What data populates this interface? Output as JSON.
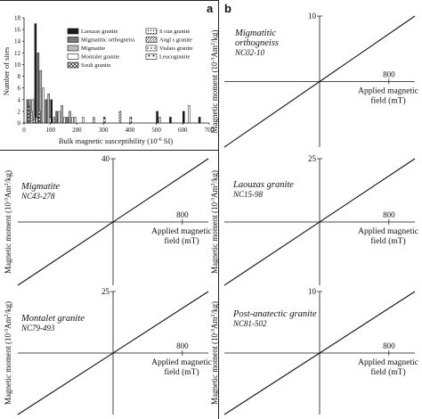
{
  "panel_labels": {
    "a": "a",
    "b": "b"
  },
  "histogram": {
    "type": "bar",
    "ylabel": "Number of sites",
    "xlabel": "Bulk magnetic susceptibility (10",
    "xlabel_exp": "-6",
    "xlabel_tail": " SI)",
    "xlim": [
      0,
      700
    ],
    "ylim": [
      0,
      18
    ],
    "xticks": [
      "0",
      "100",
      "200",
      "300",
      "400",
      "500",
      "600",
      "700"
    ],
    "yticks": [
      "0",
      "2",
      "4",
      "6",
      "8",
      "10",
      "12",
      "14",
      "16",
      "18"
    ],
    "bin_width": 10,
    "series": [
      {
        "name": "Laouzas granite",
        "color": "#1a1a1a",
        "pattern": "solid",
        "bins": [
          {
            "x": 40,
            "v": 17
          },
          {
            "x": 100,
            "v": 4
          },
          {
            "x": 500,
            "v": 2
          },
          {
            "x": 550,
            "v": 1
          },
          {
            "x": 600,
            "v": 2
          },
          {
            "x": 660,
            "v": 1
          }
        ]
      },
      {
        "name": "Migmatitic orthogneiss",
        "color": "#777777",
        "pattern": "solid",
        "bins": [
          {
            "x": 10,
            "v": 4
          },
          {
            "x": 50,
            "v": 12
          },
          {
            "x": 80,
            "v": 4
          },
          {
            "x": 120,
            "v": 2
          },
          {
            "x": 160,
            "v": 1
          }
        ]
      },
      {
        "name": "Migmatite",
        "color": "#bbbbbb",
        "pattern": "solid",
        "bins": [
          {
            "x": 20,
            "v": 4
          },
          {
            "x": 60,
            "v": 9
          },
          {
            "x": 90,
            "v": 5
          },
          {
            "x": 140,
            "v": 3
          },
          {
            "x": 170,
            "v": 2
          }
        ]
      },
      {
        "name": "Montalet granite",
        "color": "#ffffff",
        "pattern": "solid",
        "bins": [
          {
            "x": 30,
            "v": 4
          },
          {
            "x": 70,
            "v": 6
          },
          {
            "x": 130,
            "v": 2
          },
          {
            "x": 220,
            "v": 1
          },
          {
            "x": 620,
            "v": 3
          }
        ]
      },
      {
        "name": "Souli granite",
        "color": "#ffffff",
        "pattern": "cross",
        "bins": [
          {
            "x": 15,
            "v": 3
          },
          {
            "x": 55,
            "v": 2
          }
        ]
      },
      {
        "name": "S cun granite",
        "color": "#ffffff",
        "pattern": "dots",
        "bins": [
          {
            "x": 180,
            "v": 1
          },
          {
            "x": 510,
            "v": 1
          }
        ]
      },
      {
        "name": "Angl s granite",
        "color": "#ffffff",
        "pattern": "hatch",
        "bins": [
          {
            "x": 25,
            "v": 2
          },
          {
            "x": 110,
            "v": 1
          },
          {
            "x": 360,
            "v": 2
          }
        ]
      },
      {
        "name": "Vialais granite",
        "color": "#ffffff",
        "pattern": "vdots",
        "bins": [
          {
            "x": 35,
            "v": 1
          },
          {
            "x": 150,
            "v": 1
          },
          {
            "x": 260,
            "v": 1
          }
        ]
      },
      {
        "name": "Leucogranite",
        "color": "#ffffff",
        "pattern": "stars",
        "bins": [
          {
            "x": 45,
            "v": 1
          },
          {
            "x": 95,
            "v": 1
          },
          {
            "x": 190,
            "v": 1
          },
          {
            "x": 300,
            "v": 1
          },
          {
            "x": 400,
            "v": 1
          }
        ]
      }
    ]
  },
  "chart_data": [
    {
      "type": "line",
      "panel": "b-1",
      "title": "Migmatitic\northogneiss",
      "sample": "NC02-10",
      "xlabel": "Applied magnetic\nfield (mT)",
      "ylabel": "Magnetic moment (10",
      "ylabel_exp": "-3",
      "ylabel_tail": "Am",
      "ylabel_exp2": "2",
      "ylabel_tail2": "/kg)",
      "x_tick": "800",
      "y_tick": "10",
      "xlim": [
        -1100,
        1100
      ],
      "ylim": [
        -10,
        10
      ],
      "points": [
        [
          -1100,
          -10
        ],
        [
          1100,
          10
        ]
      ]
    },
    {
      "type": "line",
      "panel": "b-2",
      "title": "Migmatite",
      "sample": "NC43-278",
      "xlabel": "Applied magnetic\nfield (mT)",
      "ylabel": "Magnetic moment (10",
      "ylabel_exp": "-3",
      "ylabel_tail": "Am",
      "ylabel_exp2": "2",
      "ylabel_tail2": "/kg)",
      "x_tick": "800",
      "y_tick": "40",
      "xlim": [
        -1100,
        1100
      ],
      "ylim": [
        -40,
        40
      ],
      "points": [
        [
          -1100,
          -40
        ],
        [
          1100,
          40
        ]
      ]
    },
    {
      "type": "line",
      "panel": "b-3",
      "title": "Laouzas granite",
      "sample": "NC15-98",
      "xlabel": "Applied magnetic\nfield (mT)",
      "ylabel": "Magnetic moment (10",
      "ylabel_exp": "-3",
      "ylabel_tail": "Am",
      "ylabel_exp2": "2",
      "ylabel_tail2": "/kg)",
      "x_tick": "800",
      "y_tick": "25",
      "xlim": [
        -1100,
        1100
      ],
      "ylim": [
        -25,
        25
      ],
      "points": [
        [
          -1100,
          -25
        ],
        [
          1100,
          25
        ]
      ]
    },
    {
      "type": "line",
      "panel": "b-4",
      "title": "Montalet granite",
      "sample": "NC79-493",
      "xlabel": "Applied magnetic\nfield (mT)",
      "ylabel": "Magnetic moment (10",
      "ylabel_exp": "-3",
      "ylabel_tail": "Am",
      "ylabel_exp2": "2",
      "ylabel_tail2": "/kg)",
      "x_tick": "800",
      "y_tick": "25",
      "xlim": [
        -1100,
        1100
      ],
      "ylim": [
        -25,
        25
      ],
      "points": [
        [
          -1100,
          -25
        ],
        [
          1100,
          25
        ]
      ]
    },
    {
      "type": "line",
      "panel": "b-5",
      "title": "Post-anatectic granite",
      "sample": "NC81-502",
      "xlabel": "Applied magnetic\nfield (mT)",
      "ylabel": "Magnetic moment (10",
      "ylabel_exp": "-3",
      "ylabel_tail": "Am",
      "ylabel_exp2": "2",
      "ylabel_tail2": "/kg)",
      "x_tick": "800",
      "y_tick": "10",
      "xlim": [
        -1100,
        1100
      ],
      "ylim": [
        -10,
        10
      ],
      "points": [
        [
          -1100,
          -10
        ],
        [
          1100,
          10
        ]
      ]
    }
  ]
}
